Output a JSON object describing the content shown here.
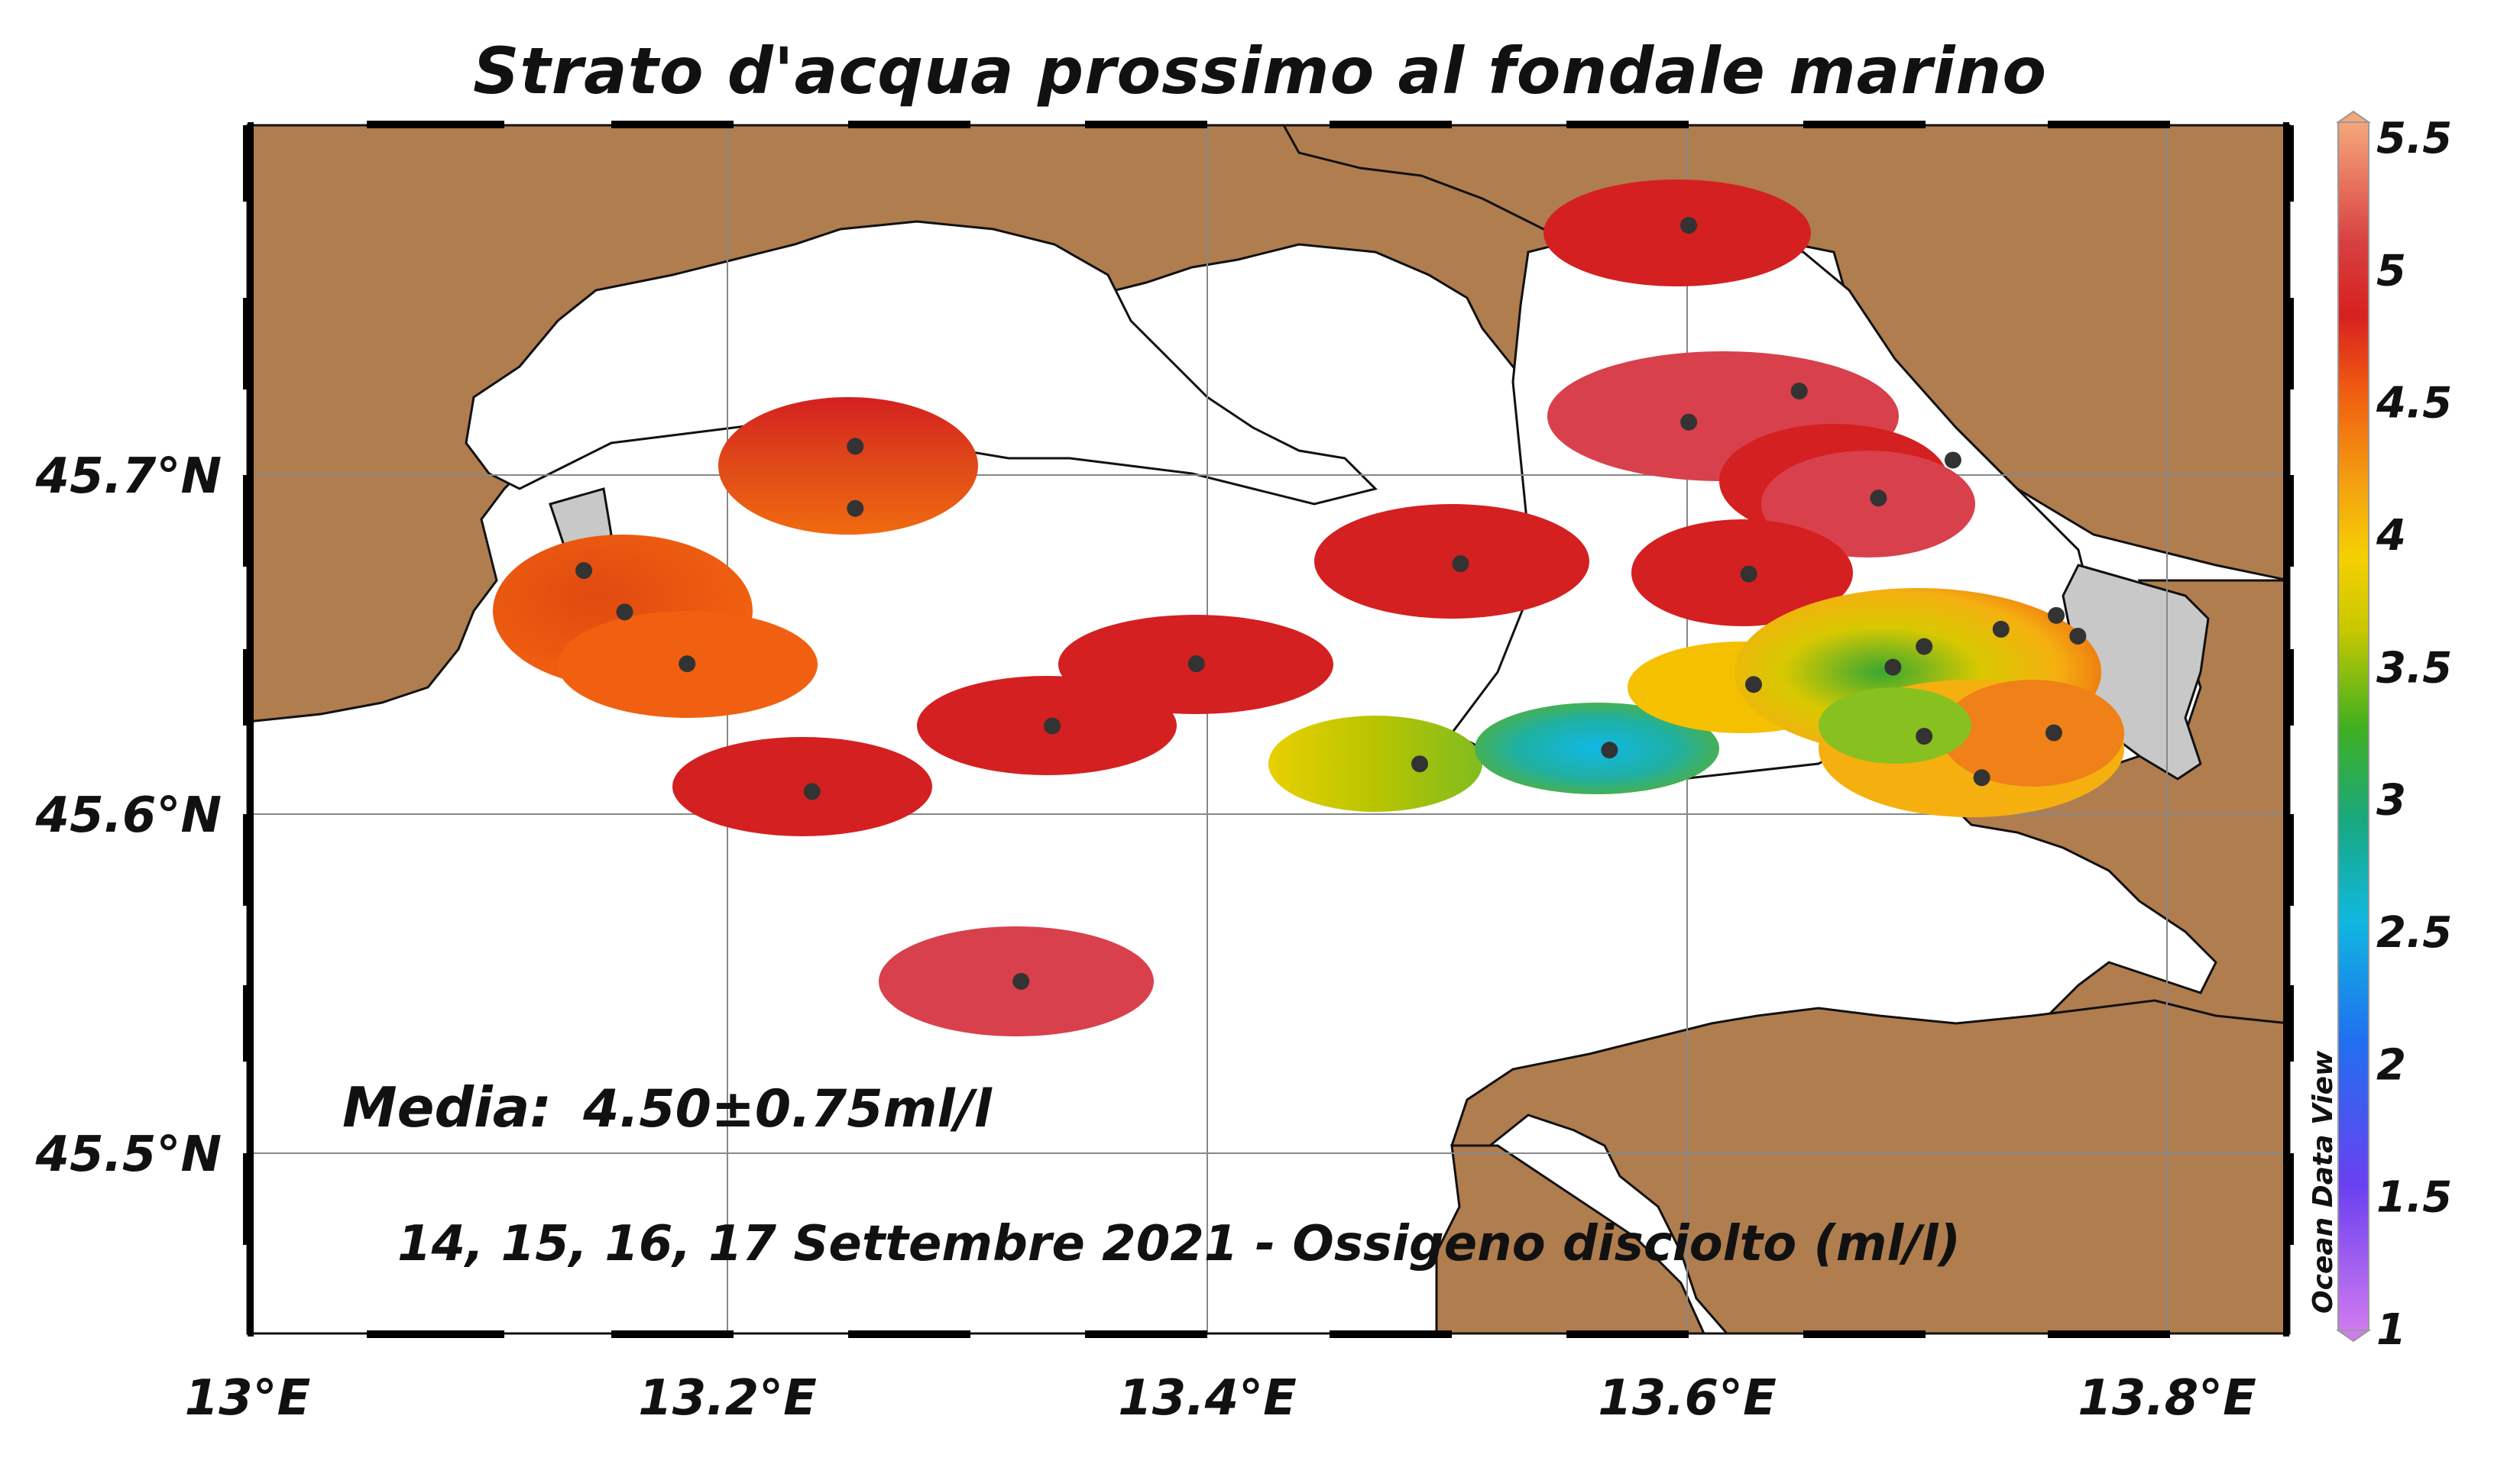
{
  "title": "Strato d'acqua prossimo al fondale marino",
  "annotation": {
    "media_label": "Media:",
    "media_value": "4.50±0.75ml/l",
    "subtitle": "14, 15, 16, 17  Settembre 2021 - Ossigeno disciolto (ml/l)"
  },
  "watermark": "Ocean Data View",
  "axes": {
    "x_ticks": [
      "13°E",
      "13.2°E",
      "13.4°E",
      "13.6°E",
      "13.8°E"
    ],
    "y_ticks": [
      "45.7°N",
      "45.6°N",
      "45.5°N"
    ]
  },
  "colorbar": {
    "ticks": [
      "5.5",
      "5",
      "4.5",
      "4",
      "3.5",
      "3",
      "2.5",
      "2",
      "1.5",
      "1"
    ],
    "min": 1,
    "max": 5.5
  },
  "colors": {
    "land": "#b07d4f",
    "water": "#ffffff",
    "urban": "#c8c8c8",
    "station": "#333333"
  },
  "chart_data": {
    "type": "map",
    "variable": "Ossigeno disciolto (ml/l)",
    "x_range": [
      13.0,
      13.85
    ],
    "y_range": [
      45.45,
      45.8
    ],
    "stations": [
      {
        "lon": 13.6,
        "lat": 45.771,
        "value": 5.0
      },
      {
        "lon": 13.646,
        "lat": 45.723,
        "value": 5.25
      },
      {
        "lon": 13.6,
        "lat": 45.714,
        "value": 5.2
      },
      {
        "lon": 13.71,
        "lat": 45.703,
        "value": 5.0
      },
      {
        "lon": 13.679,
        "lat": 45.692,
        "value": 5.2
      },
      {
        "lon": 13.253,
        "lat": 45.707,
        "value": 4.95
      },
      {
        "lon": 13.253,
        "lat": 45.689,
        "value": 4.55
      },
      {
        "lon": 13.505,
        "lat": 45.673,
        "value": 5.0
      },
      {
        "lon": 13.625,
        "lat": 45.67,
        "value": 5.0
      },
      {
        "lon": 13.14,
        "lat": 45.671,
        "value": 4.6
      },
      {
        "lon": 13.157,
        "lat": 45.659,
        "value": 4.65
      },
      {
        "lon": 13.183,
        "lat": 45.644,
        "value": 4.55
      },
      {
        "lon": 13.395,
        "lat": 45.644,
        "value": 5.0
      },
      {
        "lon": 13.335,
        "lat": 45.626,
        "value": 5.0
      },
      {
        "lon": 13.235,
        "lat": 45.607,
        "value": 5.0
      },
      {
        "lon": 13.322,
        "lat": 45.552,
        "value": 5.25
      },
      {
        "lon": 13.488,
        "lat": 45.615,
        "value": 3.8
      },
      {
        "lon": 13.567,
        "lat": 45.619,
        "value": 2.6
      },
      {
        "lon": 13.627,
        "lat": 45.638,
        "value": 4.1
      },
      {
        "lon": 13.685,
        "lat": 45.643,
        "value": 3.3
      },
      {
        "lon": 13.698,
        "lat": 45.649,
        "value": 3.7
      },
      {
        "lon": 13.73,
        "lat": 45.654,
        "value": 4.4
      },
      {
        "lon": 13.753,
        "lat": 45.658,
        "value": 4.5
      },
      {
        "lon": 13.762,
        "lat": 45.652,
        "value": 4.7
      },
      {
        "lon": 13.698,
        "lat": 45.623,
        "value": 3.9
      },
      {
        "lon": 13.752,
        "lat": 45.624,
        "value": 4.4
      },
      {
        "lon": 13.722,
        "lat": 45.611,
        "value": 4.2
      }
    ]
  }
}
